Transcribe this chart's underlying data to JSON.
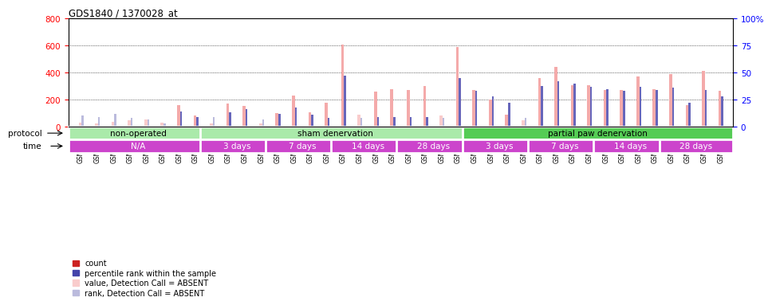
{
  "title": "GDS1840 / 1370028_at",
  "samples": [
    "GSM53196",
    "GSM53197",
    "GSM53198",
    "GSM53199",
    "GSM53200",
    "GSM53201",
    "GSM53202",
    "GSM53203",
    "GSM53208",
    "GSM53209",
    "GSM53210",
    "GSM53211",
    "GSM53216",
    "GSM53217",
    "GSM53218",
    "GSM53219",
    "GSM53224",
    "GSM53225",
    "GSM53226",
    "GSM53227",
    "GSM53232",
    "GSM53233",
    "GSM53234",
    "GSM53235",
    "GSM53204",
    "GSM53205",
    "GSM53206",
    "GSM53207",
    "GSM53212",
    "GSM53213",
    "GSM53214",
    "GSM53215",
    "GSM53220",
    "GSM53221",
    "GSM53222",
    "GSM53223",
    "GSM53228",
    "GSM53229",
    "GSM53230",
    "GSM53231"
  ],
  "values": [
    28,
    22,
    35,
    45,
    55,
    30,
    160,
    80,
    25,
    170,
    155,
    22,
    100,
    230,
    105,
    175,
    610,
    90,
    260,
    280,
    270,
    300,
    80,
    590,
    270,
    200,
    90,
    50,
    360,
    440,
    310,
    310,
    270,
    270,
    370,
    280,
    390,
    160,
    415,
    265
  ],
  "ranks": [
    10,
    9,
    12,
    8,
    7,
    3,
    14,
    9,
    9,
    13,
    16,
    7,
    12,
    18,
    11,
    8,
    47,
    8,
    9,
    9,
    9,
    9,
    8,
    45,
    33,
    28,
    22,
    8,
    38,
    42,
    40,
    37,
    35,
    33,
    37,
    34,
    36,
    22,
    34,
    28
  ],
  "absent": [
    true,
    true,
    true,
    true,
    true,
    true,
    false,
    false,
    true,
    false,
    false,
    true,
    false,
    false,
    false,
    false,
    false,
    true,
    false,
    false,
    false,
    false,
    true,
    false,
    false,
    false,
    false,
    true,
    false,
    false,
    false,
    false,
    false,
    false,
    false,
    false,
    false,
    false,
    false,
    false
  ],
  "protocol_groups": [
    {
      "label": "non-operated",
      "start": 0,
      "end": 7,
      "color": "#90EE90"
    },
    {
      "label": "sham denervation",
      "start": 8,
      "end": 23,
      "color": "#90EE90"
    },
    {
      "label": "partial paw denervation",
      "start": 24,
      "end": 39,
      "color": "#44BB44"
    }
  ],
  "time_groups": [
    {
      "label": "N/A",
      "start": 0,
      "end": 7
    },
    {
      "label": "3 days",
      "start": 8,
      "end": 11
    },
    {
      "label": "7 days",
      "start": 12,
      "end": 15
    },
    {
      "label": "14 days",
      "start": 16,
      "end": 19
    },
    {
      "label": "28 days",
      "start": 20,
      "end": 23
    },
    {
      "label": "3 days",
      "start": 24,
      "end": 27
    },
    {
      "label": "7 days",
      "start": 28,
      "end": 31
    },
    {
      "label": "14 days",
      "start": 32,
      "end": 35
    },
    {
      "label": "28 days",
      "start": 36,
      "end": 39
    }
  ],
  "ylim_left": [
    0,
    800
  ],
  "ylim_right": [
    0,
    100
  ],
  "yticks_left": [
    0,
    200,
    400,
    600,
    800
  ],
  "yticks_right": [
    0,
    25,
    50,
    75,
    100
  ],
  "color_value_present": "#F4AAAA",
  "color_rank_present": "#6666BB",
  "color_value_absent": "#F9CCCC",
  "color_rank_absent": "#BBBBDD",
  "color_count_legend": "#CC2222",
  "color_rank_legend": "#4444AA",
  "legend_items": [
    {
      "label": "count",
      "color": "#CC2222"
    },
    {
      "label": "percentile rank within the sample",
      "color": "#4444AA"
    },
    {
      "label": "value, Detection Call = ABSENT",
      "color": "#F9CCCC"
    },
    {
      "label": "rank, Detection Call = ABSENT",
      "color": "#BBBBDD"
    }
  ]
}
